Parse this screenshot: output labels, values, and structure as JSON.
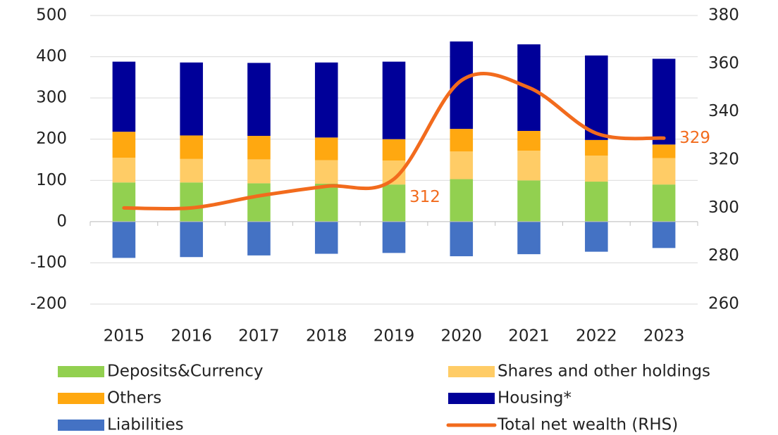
{
  "chart_data": {
    "type": "bar",
    "categories": [
      "2015",
      "2016",
      "2017",
      "2018",
      "2019",
      "2020",
      "2021",
      "2022",
      "2023"
    ],
    "series": [
      {
        "name": "Deposits&Currency",
        "color": "#92d050",
        "values": [
          95,
          95,
          93,
          92,
          90,
          103,
          100,
          97,
          90
        ]
      },
      {
        "name": "Shares and other holdings",
        "color": "#ffcc66",
        "values": [
          60,
          57,
          58,
          57,
          58,
          67,
          72,
          63,
          64
        ]
      },
      {
        "name": "Others",
        "color": "#ffa810",
        "values": [
          63,
          57,
          57,
          55,
          52,
          55,
          48,
          38,
          33
        ]
      },
      {
        "name": "Housing*",
        "color": "#000099",
        "values": [
          170,
          177,
          177,
          182,
          188,
          212,
          210,
          205,
          208
        ]
      },
      {
        "name": "Liabilities",
        "color": "#4472c4",
        "values": [
          -88,
          -86,
          -82,
          -78,
          -76,
          -84,
          -79,
          -73,
          -64
        ]
      },
      {
        "name": "Total net wealth (RHS)",
        "color": "#f26b1d",
        "type": "line",
        "axis": "y2",
        "values": [
          300,
          300,
          305,
          309,
          312,
          353,
          350,
          331,
          329
        ],
        "value_labels": [
          null,
          null,
          null,
          null,
          "312",
          null,
          null,
          null,
          "329"
        ]
      }
    ],
    "ylim": [
      -200,
      500
    ],
    "yticks": [
      -200,
      -100,
      0,
      100,
      200,
      300,
      400,
      500
    ],
    "y2lim": [
      260,
      380
    ],
    "y2ticks": [
      260,
      280,
      300,
      320,
      340,
      360,
      380
    ],
    "grid": true
  }
}
